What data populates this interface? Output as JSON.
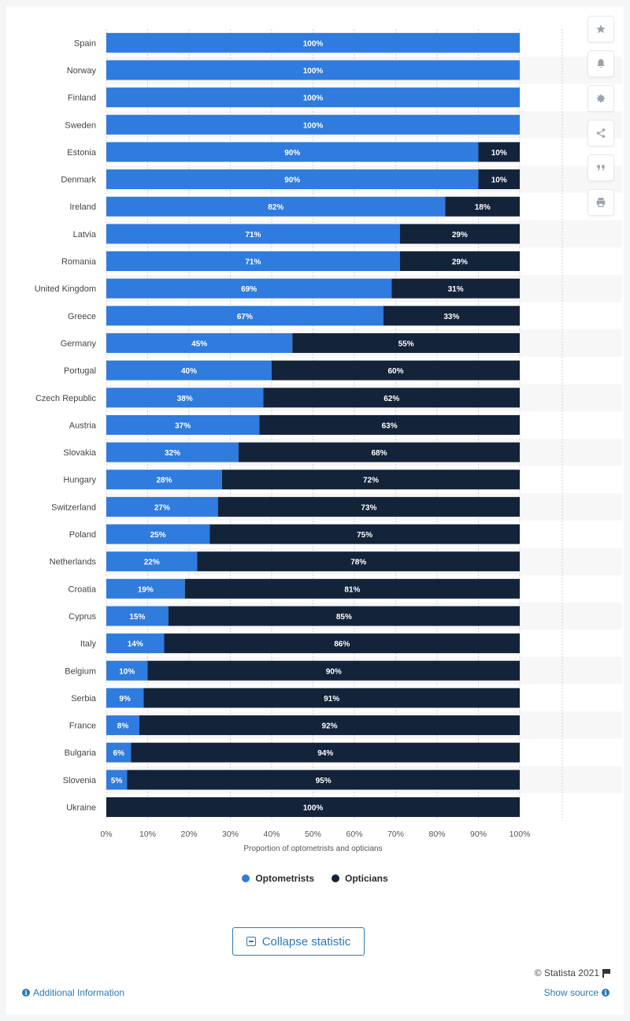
{
  "chart_data": {
    "type": "bar",
    "orientation": "horizontal",
    "stacked": true,
    "categories": [
      "Spain",
      "Norway",
      "Finland",
      "Sweden",
      "Estonia",
      "Denmark",
      "Ireland",
      "Latvia",
      "Romania",
      "United Kingdom",
      "Greece",
      "Germany",
      "Portugal",
      "Czech Republic",
      "Austria",
      "Slovakia",
      "Hungary",
      "Switzerland",
      "Poland",
      "Netherlands",
      "Croatia",
      "Cyprus",
      "Italy",
      "Belgium",
      "Serbia",
      "France",
      "Bulgaria",
      "Slovenia",
      "Ukraine"
    ],
    "series": [
      {
        "name": "Optometrists",
        "color": "#2f7bde",
        "values": [
          100,
          100,
          100,
          100,
          90,
          90,
          82,
          71,
          71,
          69,
          67,
          45,
          40,
          38,
          37,
          32,
          28,
          27,
          25,
          22,
          19,
          15,
          14,
          10,
          9,
          8,
          6,
          5,
          0
        ]
      },
      {
        "name": "Opticians",
        "color": "#13233a",
        "values": [
          0,
          0,
          0,
          0,
          10,
          10,
          18,
          29,
          29,
          31,
          33,
          55,
          60,
          62,
          63,
          68,
          72,
          73,
          75,
          78,
          81,
          85,
          86,
          90,
          91,
          92,
          94,
          95,
          100
        ]
      }
    ],
    "xlabel": "Proportion of optometrists and opticians",
    "ylabel": "",
    "xlim": [
      0,
      100
    ],
    "xticks": [
      "0%",
      "10%",
      "20%",
      "30%",
      "40%",
      "50%",
      "60%",
      "70%",
      "80%",
      "90%",
      "100%"
    ],
    "value_suffix": "%",
    "grid": true,
    "legend_position": "bottom"
  },
  "legend": {
    "optometrists": "Optometrists",
    "opticians": "Opticians"
  },
  "sidebar_icons": [
    "star-icon",
    "bell-icon",
    "gear-icon",
    "share-icon",
    "quote-icon",
    "print-icon"
  ],
  "footer": {
    "collapse_label": "Collapse statistic",
    "copyright": "© Statista 2021",
    "additional_info": "Additional Information",
    "show_source": "Show source"
  },
  "colors": {
    "optometrists": "#2f7bde",
    "opticians": "#13233a",
    "link": "#2a7ab8"
  }
}
